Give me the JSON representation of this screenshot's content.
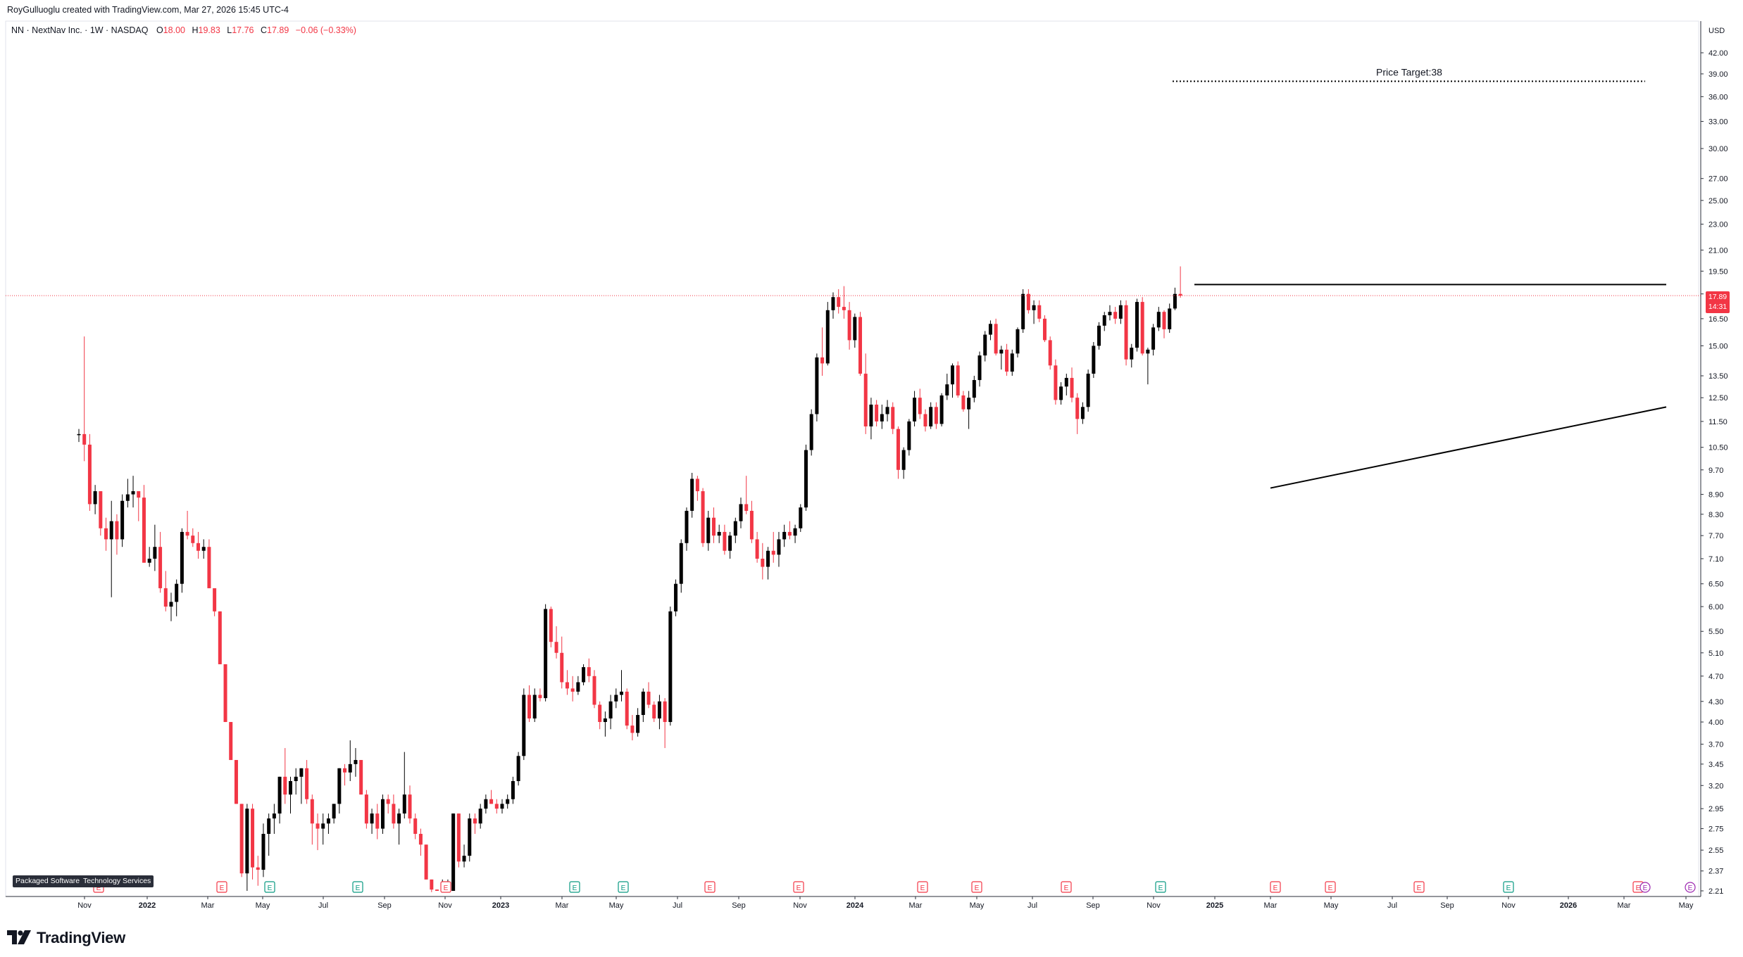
{
  "header": {
    "created_by": "RoyGulluoglu created with TradingView.com, Mar 27, 2026 15:45 UTC-4",
    "symbol_line": "NN · NextNav Inc. · 1W · NASDAQ",
    "ohlc": {
      "o_label": "O",
      "o_value": "18.00",
      "h_label": "H",
      "h_value": "19.83",
      "l_label": "L",
      "l_value": "17.76",
      "c_label": "C",
      "c_value": "17.89",
      "change": "−0.06 (−0.33%)"
    }
  },
  "price_axis": {
    "currency": "USD",
    "ticks": [
      "42.00",
      "39.00",
      "36.00",
      "33.00",
      "30.00",
      "27.00",
      "25.00",
      "23.00",
      "21.00",
      "19.50",
      "18.00",
      "16.50",
      "15.00",
      "13.50",
      "12.50",
      "11.50",
      "10.50",
      "9.70",
      "8.90",
      "8.30",
      "7.70",
      "7.10",
      "6.50",
      "6.00",
      "5.50",
      "5.10",
      "4.70",
      "4.30",
      "4.00",
      "3.70",
      "3.45",
      "3.20",
      "2.95",
      "2.75",
      "2.55",
      "2.37",
      "2.21"
    ],
    "last_price_label": "17.89",
    "countdown_label": "14:31"
  },
  "time_axis": {
    "labels": [
      "Nov",
      "2022",
      "Mar",
      "May",
      "Jul",
      "Sep",
      "Nov",
      "2023",
      "Mar",
      "May",
      "Jul",
      "Sep",
      "Nov",
      "2024",
      "Mar",
      "May",
      "Jul",
      "Sep",
      "Nov",
      "2025",
      "Mar",
      "May",
      "Jul",
      "Sep",
      "Nov",
      "2026",
      "Mar",
      "May"
    ]
  },
  "annotations": {
    "price_target_text": "Price Target:38"
  },
  "sector_tags": [
    "Packaged Software",
    "Technology Services"
  ],
  "event_markers": {
    "earnings_letter": "E"
  },
  "branding": {
    "logo_text": "TradingView"
  },
  "colors": {
    "up": "#000000",
    "down": "#f23645",
    "earnings_red": "#f23645",
    "earnings_green": "#089981",
    "dividend_purple": "#9c27b0",
    "grid": "#f0f3fa"
  },
  "chart_data": {
    "type": "candlestick",
    "scale": "log",
    "interval": "1W",
    "ylim": [
      2.21,
      42.0
    ],
    "x_range": [
      "2021-10",
      "2026-05"
    ],
    "key_levels": {
      "resistance": 18.6,
      "price_target": 38,
      "support_trendline": {
        "from": {
          "date": "2025-03",
          "price": 9.1
        },
        "to": {
          "date": "2026-05",
          "price": 12.1
        }
      }
    },
    "last_candle": {
      "open": 18.0,
      "high": 19.83,
      "low": 17.76,
      "close": 17.89
    },
    "candles": [
      [
        11.0,
        11.2,
        10.7,
        11.0
      ],
      [
        11.0,
        15.5,
        10.0,
        10.6
      ],
      [
        10.6,
        11.0,
        8.4,
        8.6
      ],
      [
        8.6,
        9.2,
        8.3,
        9.0
      ],
      [
        9.0,
        9.0,
        7.7,
        7.9
      ],
      [
        7.9,
        8.2,
        7.3,
        7.6
      ],
      [
        7.6,
        8.7,
        6.2,
        8.1
      ],
      [
        8.1,
        8.3,
        7.2,
        7.6
      ],
      [
        7.6,
        8.9,
        7.4,
        8.7
      ],
      [
        8.7,
        9.4,
        8.5,
        8.9
      ],
      [
        8.9,
        9.5,
        8.5,
        9.0
      ],
      [
        9.0,
        9.0,
        8.1,
        8.8
      ],
      [
        8.8,
        9.2,
        7.0,
        7.0
      ],
      [
        7.0,
        7.4,
        6.9,
        7.1
      ],
      [
        7.1,
        8.0,
        6.8,
        7.4
      ],
      [
        7.4,
        7.8,
        6.3,
        6.4
      ],
      [
        6.4,
        6.8,
        5.9,
        6.0
      ],
      [
        6.0,
        6.3,
        5.7,
        6.1
      ],
      [
        6.1,
        6.6,
        5.8,
        6.5
      ],
      [
        6.5,
        7.9,
        6.3,
        7.8
      ],
      [
        7.8,
        8.4,
        7.6,
        7.7
      ],
      [
        7.7,
        7.9,
        7.4,
        7.5
      ],
      [
        7.5,
        7.8,
        7.1,
        7.3
      ],
      [
        7.3,
        7.6,
        7.1,
        7.4
      ],
      [
        7.4,
        7.6,
        6.4,
        6.4
      ],
      [
        6.4,
        6.4,
        5.8,
        5.9
      ],
      [
        5.9,
        5.9,
        4.9,
        4.9
      ],
      [
        4.9,
        4.9,
        4.0,
        4.0
      ],
      [
        4.0,
        4.0,
        3.5,
        3.5
      ],
      [
        3.5,
        3.5,
        3.0,
        3.0
      ],
      [
        3.0,
        3.0,
        2.32,
        2.35
      ],
      [
        2.35,
        3.0,
        2.21,
        2.95
      ],
      [
        2.95,
        3.0,
        2.3,
        2.4
      ],
      [
        2.4,
        2.5,
        2.25,
        2.38
      ],
      [
        2.38,
        2.8,
        2.32,
        2.7
      ],
      [
        2.7,
        2.9,
        2.5,
        2.85
      ],
      [
        2.85,
        3.0,
        2.7,
        2.9
      ],
      [
        2.9,
        3.3,
        2.8,
        3.3
      ],
      [
        3.3,
        3.65,
        3.0,
        3.1
      ],
      [
        3.1,
        3.3,
        2.9,
        3.25
      ],
      [
        3.25,
        3.4,
        3.1,
        3.3
      ],
      [
        3.3,
        3.4,
        3.0,
        3.4
      ],
      [
        3.4,
        3.5,
        3.0,
        3.05
      ],
      [
        3.05,
        3.1,
        2.6,
        2.8
      ],
      [
        2.8,
        2.9,
        2.55,
        2.75
      ],
      [
        2.75,
        2.9,
        2.6,
        2.8
      ],
      [
        2.8,
        2.9,
        2.7,
        2.85
      ],
      [
        2.85,
        3.0,
        2.8,
        3.0
      ],
      [
        3.0,
        3.4,
        2.9,
        3.4
      ],
      [
        3.4,
        3.45,
        3.2,
        3.35
      ],
      [
        3.35,
        3.75,
        3.25,
        3.45
      ],
      [
        3.45,
        3.65,
        3.3,
        3.5
      ],
      [
        3.5,
        3.5,
        3.1,
        3.1
      ],
      [
        3.1,
        3.15,
        2.75,
        2.8
      ],
      [
        2.8,
        2.95,
        2.7,
        2.9
      ],
      [
        2.9,
        3.0,
        2.65,
        2.75
      ],
      [
        2.75,
        3.1,
        2.7,
        3.05
      ],
      [
        3.05,
        3.1,
        2.9,
        3.0
      ],
      [
        3.0,
        3.1,
        2.75,
        2.8
      ],
      [
        2.8,
        2.95,
        2.6,
        2.9
      ],
      [
        2.9,
        3.6,
        2.85,
        3.1
      ],
      [
        3.1,
        3.2,
        2.8,
        2.85
      ],
      [
        2.85,
        2.9,
        2.65,
        2.7
      ],
      [
        2.7,
        2.75,
        2.5,
        2.6
      ],
      [
        2.6,
        2.6,
        2.3,
        2.3
      ],
      [
        2.3,
        2.3,
        2.2,
        2.22
      ],
      [
        2.22,
        2.22,
        2.21,
        2.21
      ],
      [
        2.21,
        2.3,
        2.21,
        2.25
      ],
      [
        2.25,
        2.3,
        2.21,
        2.28
      ],
      [
        2.21,
        2.9,
        2.21,
        2.9
      ],
      [
        2.9,
        2.9,
        2.4,
        2.45
      ],
      [
        2.45,
        2.6,
        2.4,
        2.5
      ],
      [
        2.5,
        2.9,
        2.45,
        2.85
      ],
      [
        2.85,
        2.9,
        2.7,
        2.8
      ],
      [
        2.8,
        3.0,
        2.75,
        2.95
      ],
      [
        2.95,
        3.1,
        2.9,
        3.05
      ],
      [
        3.05,
        3.15,
        3.0,
        3.0
      ],
      [
        3.0,
        3.05,
        2.9,
        2.95
      ],
      [
        2.95,
        3.05,
        2.9,
        3.0
      ],
      [
        3.0,
        3.1,
        2.95,
        3.05
      ],
      [
        3.05,
        3.3,
        3.0,
        3.25
      ],
      [
        3.25,
        3.6,
        3.2,
        3.55
      ],
      [
        3.55,
        4.5,
        3.5,
        4.4
      ],
      [
        4.4,
        4.55,
        4.0,
        4.05
      ],
      [
        4.05,
        4.5,
        4.0,
        4.4
      ],
      [
        4.4,
        4.5,
        4.3,
        4.35
      ],
      [
        4.35,
        6.05,
        4.3,
        5.95
      ],
      [
        5.95,
        6.0,
        5.2,
        5.3
      ],
      [
        5.3,
        5.6,
        5.0,
        5.1
      ],
      [
        5.1,
        5.4,
        4.5,
        4.6
      ],
      [
        4.6,
        4.8,
        4.4,
        4.5
      ],
      [
        4.5,
        4.7,
        4.3,
        4.45
      ],
      [
        4.45,
        4.7,
        4.4,
        4.6
      ],
      [
        4.6,
        4.9,
        4.55,
        4.85
      ],
      [
        4.85,
        5.0,
        4.6,
        4.7
      ],
      [
        4.7,
        4.8,
        4.2,
        4.25
      ],
      [
        4.25,
        4.3,
        3.9,
        4.0
      ],
      [
        4.0,
        4.15,
        3.8,
        4.05
      ],
      [
        4.05,
        4.4,
        3.9,
        4.3
      ],
      [
        4.3,
        4.5,
        4.2,
        4.4
      ],
      [
        4.4,
        4.8,
        4.3,
        4.45
      ],
      [
        4.45,
        4.5,
        3.9,
        3.95
      ],
      [
        3.95,
        4.1,
        3.75,
        3.85
      ],
      [
        3.85,
        4.2,
        3.8,
        4.1
      ],
      [
        4.1,
        4.5,
        4.0,
        4.45
      ],
      [
        4.45,
        4.6,
        4.2,
        4.25
      ],
      [
        4.25,
        4.3,
        4.0,
        4.05
      ],
      [
        4.05,
        4.4,
        3.9,
        4.3
      ],
      [
        4.3,
        4.35,
        3.65,
        4.0
      ],
      [
        4.0,
        6.0,
        3.95,
        5.9
      ],
      [
        5.9,
        6.6,
        5.8,
        6.5
      ],
      [
        6.5,
        7.6,
        6.3,
        7.5
      ],
      [
        7.5,
        8.5,
        7.3,
        8.4
      ],
      [
        8.4,
        9.6,
        8.2,
        9.4
      ],
      [
        9.4,
        9.5,
        8.7,
        9.0
      ],
      [
        9.0,
        9.1,
        7.4,
        7.5
      ],
      [
        7.5,
        8.4,
        7.3,
        8.2
      ],
      [
        8.2,
        8.5,
        7.5,
        7.7
      ],
      [
        7.7,
        8.0,
        7.5,
        7.8
      ],
      [
        7.8,
        8.0,
        7.2,
        7.3
      ],
      [
        7.3,
        7.8,
        7.1,
        7.7
      ],
      [
        7.7,
        8.2,
        7.5,
        8.1
      ],
      [
        8.1,
        8.8,
        7.9,
        8.6
      ],
      [
        8.6,
        9.5,
        8.3,
        8.4
      ],
      [
        8.4,
        8.7,
        7.5,
        7.6
      ],
      [
        7.6,
        7.8,
        7.0,
        7.1
      ],
      [
        7.1,
        7.5,
        6.6,
        6.9
      ],
      [
        6.9,
        7.4,
        6.6,
        7.3
      ],
      [
        7.3,
        7.8,
        7.0,
        7.2
      ],
      [
        7.2,
        7.8,
        6.9,
        7.6
      ],
      [
        7.6,
        8.0,
        7.4,
        7.8
      ],
      [
        7.8,
        8.1,
        7.6,
        7.7
      ],
      [
        7.7,
        8.0,
        7.5,
        7.9
      ],
      [
        7.9,
        8.6,
        7.8,
        8.5
      ],
      [
        8.5,
        10.6,
        8.4,
        10.4
      ],
      [
        10.4,
        12.0,
        10.2,
        11.8
      ],
      [
        11.8,
        14.6,
        11.5,
        14.4
      ],
      [
        14.4,
        16.0,
        13.5,
        14.1
      ],
      [
        14.1,
        17.5,
        14.0,
        17.0
      ],
      [
        17.0,
        18.1,
        16.5,
        17.8
      ],
      [
        17.8,
        18.3,
        16.8,
        17.2
      ],
      [
        17.2,
        18.5,
        16.5,
        17.0
      ],
      [
        17.0,
        17.5,
        14.8,
        15.3
      ],
      [
        15.3,
        16.8,
        14.9,
        16.6
      ],
      [
        16.6,
        16.9,
        13.5,
        13.6
      ],
      [
        13.6,
        14.6,
        11.0,
        11.3
      ],
      [
        11.3,
        12.5,
        10.8,
        12.2
      ],
      [
        12.2,
        12.4,
        11.3,
        11.5
      ],
      [
        11.5,
        12.2,
        11.2,
        11.8
      ],
      [
        11.8,
        12.4,
        11.5,
        12.1
      ],
      [
        12.1,
        12.3,
        11.0,
        11.2
      ],
      [
        11.2,
        11.3,
        9.4,
        9.7
      ],
      [
        9.7,
        10.5,
        9.4,
        10.4
      ],
      [
        10.4,
        11.6,
        10.2,
        11.5
      ],
      [
        11.5,
        12.8,
        11.3,
        12.5
      ],
      [
        12.5,
        12.9,
        11.6,
        11.8
      ],
      [
        11.8,
        12.0,
        11.1,
        11.3
      ],
      [
        11.3,
        12.3,
        11.2,
        12.1
      ],
      [
        12.1,
        12.3,
        11.2,
        11.4
      ],
      [
        11.4,
        12.7,
        11.3,
        12.6
      ],
      [
        12.6,
        13.6,
        12.4,
        13.1
      ],
      [
        13.1,
        14.1,
        12.5,
        14.0
      ],
      [
        14.0,
        14.2,
        12.5,
        12.6
      ],
      [
        12.6,
        12.8,
        11.9,
        12.0
      ],
      [
        12.0,
        12.8,
        11.2,
        12.5
      ],
      [
        12.5,
        13.5,
        12.3,
        13.3
      ],
      [
        13.3,
        14.7,
        13.0,
        14.5
      ],
      [
        14.5,
        15.8,
        14.2,
        15.6
      ],
      [
        15.6,
        16.4,
        15.3,
        16.2
      ],
      [
        16.2,
        16.5,
        14.5,
        14.6
      ],
      [
        14.6,
        15.0,
        13.8,
        14.8
      ],
      [
        14.8,
        15.1,
        13.5,
        13.7
      ],
      [
        13.7,
        14.8,
        13.5,
        14.6
      ],
      [
        14.6,
        16.0,
        14.4,
        15.9
      ],
      [
        15.9,
        18.3,
        15.7,
        18.0
      ],
      [
        18.0,
        18.3,
        16.8,
        17.0
      ],
      [
        17.0,
        17.6,
        16.2,
        17.3
      ],
      [
        17.3,
        17.6,
        16.3,
        16.5
      ],
      [
        16.5,
        16.7,
        15.2,
        15.3
      ],
      [
        15.3,
        15.5,
        13.8,
        14.0
      ],
      [
        14.0,
        14.3,
        12.2,
        12.4
      ],
      [
        12.4,
        13.2,
        12.2,
        13.0
      ],
      [
        13.0,
        13.6,
        12.6,
        13.4
      ],
      [
        13.4,
        13.9,
        12.3,
        12.5
      ],
      [
        12.5,
        12.7,
        11.0,
        11.6
      ],
      [
        11.6,
        12.3,
        11.4,
        12.1
      ],
      [
        12.1,
        13.8,
        11.9,
        13.6
      ],
      [
        13.6,
        15.2,
        13.4,
        15.0
      ],
      [
        15.0,
        16.3,
        14.8,
        16.1
      ],
      [
        16.1,
        16.9,
        15.8,
        16.7
      ],
      [
        16.7,
        17.3,
        16.4,
        16.9
      ],
      [
        16.9,
        17.2,
        16.2,
        16.5
      ],
      [
        16.5,
        17.6,
        16.2,
        17.3
      ],
      [
        17.3,
        17.6,
        14.0,
        14.3
      ],
      [
        14.3,
        15.1,
        13.9,
        14.9
      ],
      [
        14.9,
        17.7,
        14.7,
        17.5
      ],
      [
        17.5,
        17.8,
        14.5,
        14.6
      ],
      [
        14.6,
        14.9,
        13.1,
        14.8
      ],
      [
        14.8,
        16.2,
        14.5,
        16.0
      ],
      [
        16.0,
        17.2,
        15.8,
        16.9
      ],
      [
        16.9,
        17.0,
        15.4,
        15.9
      ],
      [
        15.9,
        17.4,
        15.7,
        17.1
      ],
      [
        17.1,
        18.4,
        17.0,
        18.0
      ],
      [
        18.0,
        19.83,
        17.76,
        17.89
      ]
    ]
  }
}
